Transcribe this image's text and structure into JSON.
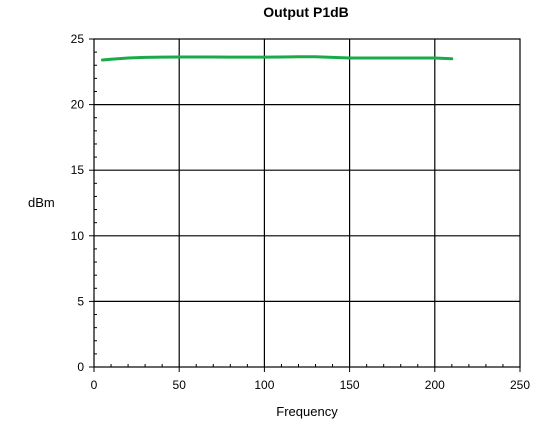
{
  "chart_data": {
    "type": "line",
    "title": "Output P1dB",
    "xlabel": "Frequency",
    "ylabel": "dBm",
    "xlim": [
      0,
      250
    ],
    "ylim": [
      0,
      25
    ],
    "x_ticks": [
      0,
      50,
      100,
      150,
      200,
      250
    ],
    "y_ticks": [
      0,
      5,
      10,
      15,
      20,
      25
    ],
    "x_minor_step": 10,
    "y_minor_step": 1,
    "grid": true,
    "series": [
      {
        "color": "#1aaa4a",
        "x": [
          5,
          10,
          20,
          30,
          40,
          50,
          60,
          70,
          80,
          90,
          100,
          110,
          120,
          130,
          140,
          150,
          160,
          170,
          180,
          190,
          200,
          205,
          210
        ],
        "y": [
          23.4,
          23.45,
          23.55,
          23.6,
          23.62,
          23.63,
          23.63,
          23.63,
          23.62,
          23.62,
          23.62,
          23.63,
          23.65,
          23.65,
          23.6,
          23.55,
          23.55,
          23.55,
          23.55,
          23.55,
          23.55,
          23.52,
          23.5
        ]
      }
    ]
  }
}
